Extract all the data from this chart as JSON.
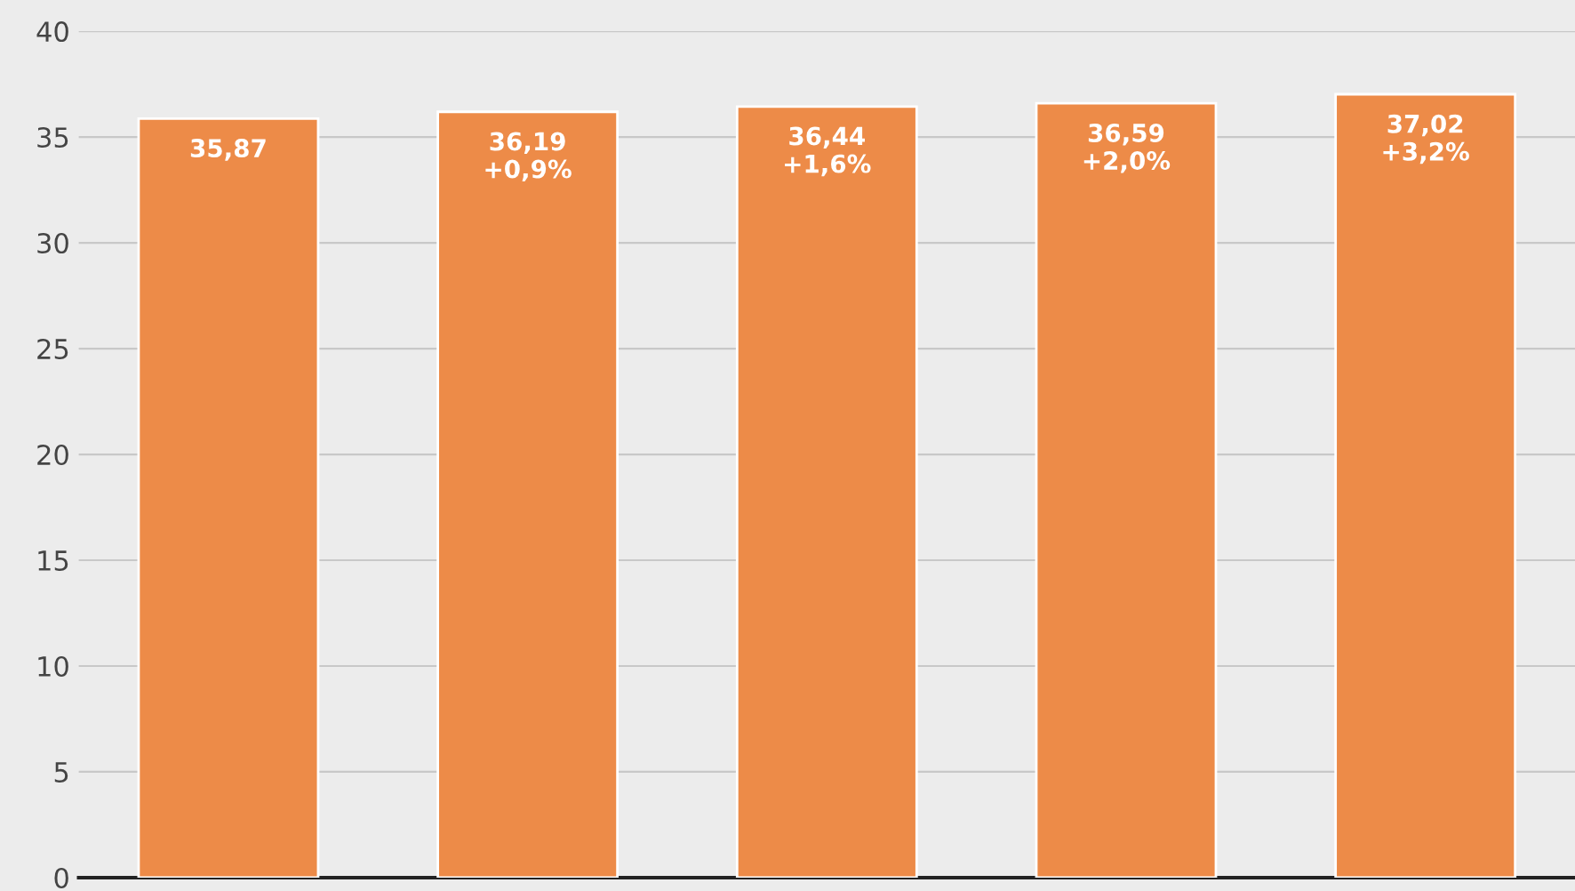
{
  "chart_data": {
    "type": "bar",
    "categories": [
      null,
      null,
      null,
      null,
      null
    ],
    "values": [
      35.87,
      36.19,
      36.44,
      36.59,
      37.02
    ],
    "value_labels": [
      "35,87",
      "36,19\n+0,9%",
      "36,44\n+1,6%",
      "36,59\n+2,0%",
      "37,02\n+3,2%"
    ],
    "color": "#ed8b48",
    "ylim": [
      0,
      40
    ],
    "yticks": [
      0,
      5,
      10,
      15,
      20,
      25,
      30,
      35,
      40
    ],
    "grid": "y"
  }
}
